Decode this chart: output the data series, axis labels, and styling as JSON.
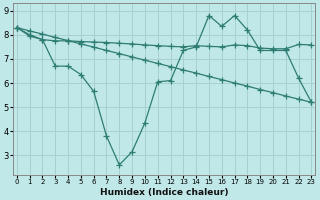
{
  "line1_x": [
    0,
    1,
    2,
    3,
    4,
    5,
    6,
    7,
    8,
    9,
    10,
    11,
    12,
    13,
    14,
    15,
    16,
    17,
    18,
    19,
    20,
    21,
    22,
    23
  ],
  "line1_y": [
    8.3,
    7.95,
    7.8,
    7.75,
    7.75,
    7.72,
    7.7,
    7.68,
    7.65,
    7.62,
    7.58,
    7.55,
    7.52,
    7.5,
    7.55,
    7.52,
    7.5,
    7.58,
    7.55,
    7.45,
    7.42,
    7.42,
    7.6,
    7.58
  ],
  "line2_x": [
    0,
    1,
    2,
    3,
    4,
    5,
    6,
    7,
    8,
    9,
    10,
    11,
    12,
    13,
    14,
    15,
    16,
    17,
    18,
    19,
    20,
    21,
    22,
    23
  ],
  "line2_y": [
    8.3,
    8.0,
    7.8,
    6.7,
    6.7,
    6.35,
    5.65,
    3.8,
    2.6,
    3.15,
    4.35,
    6.05,
    6.1,
    7.35,
    7.5,
    8.8,
    8.35,
    8.8,
    8.2,
    7.35,
    7.35,
    7.35,
    6.2,
    5.2
  ],
  "line3_x": [
    0,
    1,
    2,
    3,
    4,
    5,
    6,
    7,
    8,
    9,
    10,
    11,
    12,
    13,
    14,
    15,
    16,
    17,
    18,
    19,
    20,
    21,
    22,
    23
  ],
  "line3_y": [
    8.3,
    8.16,
    8.03,
    7.89,
    7.76,
    7.62,
    7.49,
    7.35,
    7.22,
    7.08,
    6.95,
    6.81,
    6.68,
    6.54,
    6.41,
    6.27,
    6.14,
    6.0,
    5.87,
    5.73,
    5.6,
    5.46,
    5.33,
    5.2
  ],
  "color": "#2e7d72",
  "bg_color": "#c0e8e8",
  "grid_color": "#a8d0d0",
  "xlabel": "Humidex (Indice chaleur)",
  "ylim": [
    2.2,
    9.3
  ],
  "xlim": [
    -0.3,
    23.3
  ],
  "yticks": [
    3,
    4,
    5,
    6,
    7,
    8,
    9
  ],
  "xticks": [
    0,
    1,
    2,
    3,
    4,
    5,
    6,
    7,
    8,
    9,
    10,
    11,
    12,
    13,
    14,
    15,
    16,
    17,
    18,
    19,
    20,
    21,
    22,
    23
  ],
  "marker": "+",
  "markersize": 4,
  "linewidth": 0.9
}
